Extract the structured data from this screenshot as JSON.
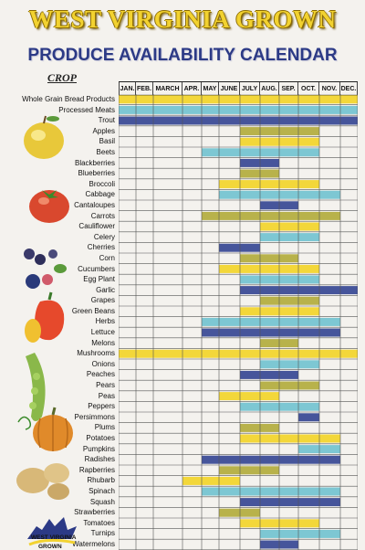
{
  "header": {
    "title": "WEST VIRGINIA GROWN",
    "subtitle": "PRODUCE AVAILABILITY CALENDAR",
    "crop_label": "CROP"
  },
  "months": [
    "JAN.",
    "FEB.",
    "MARCH",
    "APR.",
    "MAY",
    "JUNE",
    "JULY",
    "AUG.",
    "SEP.",
    "OCT.",
    "NOV.",
    "DEC."
  ],
  "colors": {
    "yellow": "#f3d73a",
    "blue": "#46559b",
    "cyan": "#7dc7d3",
    "olive": "#b8b24b"
  },
  "crops": [
    {
      "name": "Whole Grain Bread Products",
      "start": 1,
      "end": 12,
      "color": "yellow"
    },
    {
      "name": "Processed Meats",
      "start": 1,
      "end": 12,
      "color": "cyan"
    },
    {
      "name": "Trout",
      "start": 1,
      "end": 12,
      "color": "blue"
    },
    {
      "name": "Apples",
      "start": 7,
      "end": 10,
      "color": "olive"
    },
    {
      "name": "Basil",
      "start": 7,
      "end": 10,
      "color": "yellow"
    },
    {
      "name": "Beets",
      "start": 5,
      "end": 10,
      "color": "cyan"
    },
    {
      "name": "Blackberries",
      "start": 7,
      "end": 8,
      "color": "blue"
    },
    {
      "name": "Blueberries",
      "start": 7,
      "end": 8,
      "color": "olive"
    },
    {
      "name": "Broccoli",
      "start": 6,
      "end": 10,
      "color": "yellow"
    },
    {
      "name": "Cabbage",
      "start": 6,
      "end": 11,
      "color": "cyan"
    },
    {
      "name": "Cantaloupes",
      "start": 8,
      "end": 9,
      "color": "blue"
    },
    {
      "name": "Carrots",
      "start": 5,
      "end": 11,
      "color": "olive"
    },
    {
      "name": "Cauliflower",
      "start": 8,
      "end": 10,
      "color": "yellow"
    },
    {
      "name": "Celery",
      "start": 8,
      "end": 10,
      "color": "cyan"
    },
    {
      "name": "Cherries",
      "start": 6,
      "end": 7,
      "color": "blue"
    },
    {
      "name": "Corn",
      "start": 7,
      "end": 9,
      "color": "olive"
    },
    {
      "name": "Cucumbers",
      "start": 6,
      "end": 10,
      "color": "yellow"
    },
    {
      "name": "Egg Plant",
      "start": 7,
      "end": 10,
      "color": "cyan"
    },
    {
      "name": "Garlic",
      "start": 7,
      "end": 12,
      "color": "blue"
    },
    {
      "name": "Grapes",
      "start": 8,
      "end": 10,
      "color": "olive"
    },
    {
      "name": "Green Beans",
      "start": 7,
      "end": 10,
      "color": "yellow"
    },
    {
      "name": "Herbs",
      "start": 5,
      "end": 11,
      "color": "cyan"
    },
    {
      "name": "Lettuce",
      "start": 5,
      "end": 11,
      "color": "blue"
    },
    {
      "name": "Melons",
      "start": 8,
      "end": 9,
      "color": "olive"
    },
    {
      "name": "Mushrooms",
      "start": 1,
      "end": 12,
      "color": "yellow"
    },
    {
      "name": "Onions",
      "start": 8,
      "end": 10,
      "color": "cyan"
    },
    {
      "name": "Peaches",
      "start": 7,
      "end": 9,
      "color": "blue"
    },
    {
      "name": "Pears",
      "start": 8,
      "end": 10,
      "color": "olive"
    },
    {
      "name": "Peas",
      "start": 6,
      "end": 8,
      "color": "yellow"
    },
    {
      "name": "Peppers",
      "start": 7,
      "end": 10,
      "color": "cyan"
    },
    {
      "name": "Persimmons",
      "start": 10,
      "end": 10,
      "color": "blue"
    },
    {
      "name": "Plums",
      "start": 7,
      "end": 8,
      "color": "olive"
    },
    {
      "name": "Potatoes",
      "start": 7,
      "end": 11,
      "color": "yellow"
    },
    {
      "name": "Pumpkins",
      "start": 10,
      "end": 11,
      "color": "cyan"
    },
    {
      "name": "Radishes",
      "start": 5,
      "end": 11,
      "color": "blue"
    },
    {
      "name": "Rapberries",
      "start": 6,
      "end": 8,
      "color": "olive"
    },
    {
      "name": "Rhubarb",
      "start": 4,
      "end": 6,
      "color": "yellow"
    },
    {
      "name": "Spinach",
      "start": 5,
      "end": 11,
      "color": "cyan"
    },
    {
      "name": "Squash",
      "start": 7,
      "end": 11,
      "color": "blue"
    },
    {
      "name": "Strawberries",
      "start": 6,
      "end": 7,
      "color": "olive"
    },
    {
      "name": "Tomatoes",
      "start": 7,
      "end": 10,
      "color": "yellow"
    },
    {
      "name": "Turnips",
      "start": 8,
      "end": 11,
      "color": "cyan"
    },
    {
      "name": "Watermelons",
      "start": 8,
      "end": 9,
      "color": "blue"
    }
  ],
  "logo": {
    "text_top": "WEST VIRGINIA",
    "text_bottom": "GROWN"
  }
}
